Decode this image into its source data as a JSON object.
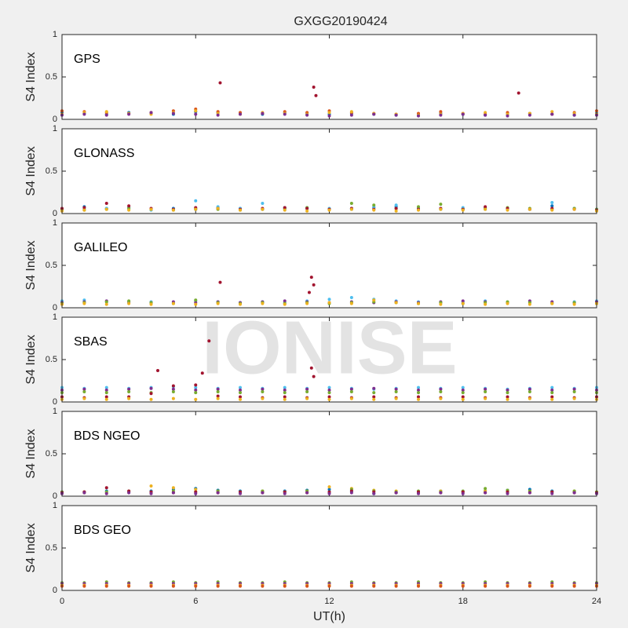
{
  "title": "GXGG20190424",
  "watermark": "IONISE",
  "chart_data": [
    {
      "type": "scatter",
      "label": "GPS",
      "ylabel": "S4 Index",
      "xlim": [
        0,
        24
      ],
      "ylim": [
        0,
        1
      ],
      "yticks": [
        0,
        0.5,
        1
      ],
      "x": [
        0,
        1,
        2,
        3,
        4,
        5,
        6,
        7,
        8,
        9,
        10,
        11,
        12,
        13,
        14,
        15,
        16,
        17,
        18,
        19,
        20,
        21,
        22,
        23,
        24
      ],
      "series": [
        {
          "color": "#0072BD",
          "values": [
            0.08,
            0.07,
            0.06,
            0.08,
            0.07,
            0.06,
            0.09,
            0.08,
            0.07,
            0.06,
            0.08,
            0.07,
            0.06,
            0.07,
            0.06,
            0.05,
            0.06,
            0.07,
            0.06,
            0.05,
            0.06,
            0.07,
            0.06,
            0.05,
            0.07
          ]
        },
        {
          "color": "#D95319",
          "values": [
            0.1,
            0.09,
            0.08,
            0.07,
            0.08,
            0.1,
            0.12,
            0.09,
            0.08,
            0.07,
            0.09,
            0.08,
            0.1,
            0.08,
            0.07,
            0.06,
            0.07,
            0.09,
            0.07,
            0.06,
            0.08,
            0.07,
            0.06,
            0.08,
            0.1
          ]
        },
        {
          "color": "#EDB120",
          "values": [
            0.06,
            0.08,
            0.09,
            0.07,
            0.06,
            0.08,
            0.1,
            0.07,
            0.06,
            0.08,
            0.07,
            0.06,
            0.08,
            0.09,
            0.07,
            0.06,
            0.05,
            0.06,
            0.07,
            0.08,
            0.06,
            0.07,
            0.09,
            0.07,
            0.06
          ]
        },
        {
          "color": "#7E2F8E",
          "values": [
            0.05,
            0.06,
            0.05,
            0.06,
            0.08,
            0.07,
            0.06,
            0.05,
            0.06,
            0.07,
            0.06,
            0.05,
            0.04,
            0.05,
            0.06,
            0.05,
            0.04,
            0.05,
            0.06,
            0.05,
            0.04,
            0.05,
            0.06,
            0.05,
            0.05
          ]
        },
        {
          "color": "#A2142F",
          "x": [
            7.1,
            11.3,
            11.4,
            20.5
          ],
          "values": [
            0.43,
            0.38,
            0.28,
            0.31
          ]
        }
      ]
    },
    {
      "type": "scatter",
      "label": "GLONASS",
      "ylabel": "S4 Index",
      "xlim": [
        0,
        24
      ],
      "ylim": [
        0,
        1
      ],
      "yticks": [
        0,
        0.5,
        1
      ],
      "x": [
        0,
        1,
        2,
        3,
        4,
        5,
        6,
        7,
        8,
        9,
        10,
        11,
        12,
        13,
        14,
        15,
        16,
        17,
        18,
        19,
        20,
        21,
        22,
        23,
        24
      ],
      "series": [
        {
          "color": "#0072BD",
          "values": [
            0.05,
            0.08,
            0.06,
            0.07,
            0.05,
            0.06,
            0.05,
            0.07,
            0.06,
            0.05,
            0.07,
            0.06,
            0.05,
            0.06,
            0.07,
            0.08,
            0.06,
            0.05,
            0.06,
            0.07,
            0.06,
            0.05,
            0.09,
            0.06,
            0.05
          ]
        },
        {
          "color": "#4DBEEE",
          "values": [
            0.04,
            0.05,
            0.06,
            0.05,
            0.04,
            0.05,
            0.15,
            0.08,
            0.06,
            0.12,
            0.05,
            0.07,
            0.06,
            0.05,
            0.08,
            0.1,
            0.05,
            0.06,
            0.07,
            0.05,
            0.06,
            0.05,
            0.13,
            0.06,
            0.05
          ]
        },
        {
          "color": "#77AC30",
          "values": [
            0.05,
            0.04,
            0.05,
            0.06,
            0.05,
            0.04,
            0.06,
            0.05,
            0.04,
            0.05,
            0.06,
            0.07,
            0.05,
            0.12,
            0.1,
            0.06,
            0.08,
            0.11,
            0.05,
            0.06,
            0.07,
            0.06,
            0.05,
            0.06,
            0.05
          ]
        },
        {
          "color": "#A2142F",
          "values": [
            0.06,
            0.07,
            0.12,
            0.09,
            0.06,
            0.05,
            0.07,
            0.06,
            0.05,
            0.06,
            0.07,
            0.06,
            0.05,
            0.06,
            0.05,
            0.06,
            0.05,
            0.06,
            0.05,
            0.08,
            0.06,
            0.05,
            0.06,
            0.05,
            0.04
          ]
        },
        {
          "color": "#EDB120",
          "values": [
            0.03,
            0.04,
            0.05,
            0.04,
            0.05,
            0.04,
            0.05,
            0.06,
            0.04,
            0.05,
            0.04,
            0.03,
            0.04,
            0.05,
            0.04,
            0.03,
            0.04,
            0.05,
            0.04,
            0.05,
            0.04,
            0.05,
            0.04,
            0.05,
            0.03
          ]
        }
      ]
    },
    {
      "type": "scatter",
      "label": "GALILEO",
      "ylabel": "S4 Index",
      "xlim": [
        0,
        24
      ],
      "ylim": [
        0,
        1
      ],
      "yticks": [
        0,
        0.5,
        1
      ],
      "x": [
        0,
        1,
        2,
        3,
        4,
        5,
        6,
        7,
        8,
        9,
        10,
        11,
        12,
        13,
        14,
        15,
        16,
        17,
        18,
        19,
        20,
        21,
        22,
        23,
        24
      ],
      "series": [
        {
          "color": "#4DBEEE",
          "values": [
            0.08,
            0.09,
            0.07,
            0.06,
            0.07,
            0.06,
            0.08,
            0.07,
            0.06,
            0.07,
            0.06,
            0.08,
            0.1,
            0.12,
            0.1,
            0.08,
            0.07,
            0.06,
            0.07,
            0.08,
            0.06,
            0.07,
            0.06,
            0.07,
            0.08
          ]
        },
        {
          "color": "#7E2F8E",
          "values": [
            0.06,
            0.07,
            0.08,
            0.07,
            0.06,
            0.07,
            0.06,
            0.07,
            0.06,
            0.07,
            0.08,
            0.07,
            0.06,
            0.07,
            0.06,
            0.07,
            0.06,
            0.07,
            0.08,
            0.07,
            0.06,
            0.08,
            0.07,
            0.06,
            0.07
          ]
        },
        {
          "color": "#77AC30",
          "values": [
            0.05,
            0.06,
            0.07,
            0.08,
            0.06,
            0.05,
            0.09,
            0.06,
            0.05,
            0.06,
            0.05,
            0.06,
            0.05,
            0.06,
            0.07,
            0.06,
            0.05,
            0.06,
            0.05,
            0.06,
            0.07,
            0.06,
            0.05,
            0.06,
            0.05
          ]
        },
        {
          "color": "#EDB120",
          "values": [
            0.04,
            0.05,
            0.04,
            0.05,
            0.04,
            0.05,
            0.04,
            0.05,
            0.04,
            0.05,
            0.04,
            0.05,
            0.06,
            0.05,
            0.09,
            0.06,
            0.05,
            0.04,
            0.05,
            0.04,
            0.05,
            0.04,
            0.05,
            0.04,
            0.05
          ]
        },
        {
          "color": "#A2142F",
          "x": [
            7.1,
            11.2,
            11.3,
            11.1
          ],
          "values": [
            0.3,
            0.36,
            0.27,
            0.18
          ]
        }
      ]
    },
    {
      "type": "scatter",
      "label": "SBAS",
      "ylabel": "S4 Index",
      "xlim": [
        0,
        24
      ],
      "ylim": [
        0,
        1
      ],
      "yticks": [
        0,
        0.5,
        1
      ],
      "x": [
        0,
        1,
        2,
        3,
        4,
        5,
        6,
        7,
        8,
        9,
        10,
        11,
        12,
        13,
        14,
        15,
        16,
        17,
        18,
        19,
        20,
        21,
        22,
        23,
        24
      ],
      "series": [
        {
          "color": "#4DBEEE",
          "values": [
            0.17,
            0.16,
            0.17,
            0.16,
            0.17,
            0.18,
            0.17,
            0.16,
            0.17,
            0.16,
            0.17,
            0.16,
            0.17,
            0.16,
            0.15,
            0.16,
            0.17,
            0.16,
            0.17,
            0.16,
            0.15,
            0.16,
            0.17,
            0.16,
            0.17
          ]
        },
        {
          "color": "#7E2F8E",
          "values": [
            0.14,
            0.15,
            0.14,
            0.15,
            0.16,
            0.15,
            0.14,
            0.15,
            0.14,
            0.15,
            0.14,
            0.15,
            0.14,
            0.15,
            0.16,
            0.15,
            0.14,
            0.15,
            0.14,
            0.15,
            0.14,
            0.15,
            0.14,
            0.15,
            0.14
          ]
        },
        {
          "color": "#77AC30",
          "values": [
            0.11,
            0.12,
            0.11,
            0.12,
            0.11,
            0.12,
            0.11,
            0.12,
            0.11,
            0.12,
            0.11,
            0.12,
            0.11,
            0.12,
            0.11,
            0.12,
            0.11,
            0.12,
            0.11,
            0.12,
            0.11,
            0.12,
            0.11,
            0.12,
            0.11
          ]
        },
        {
          "color": "#A2142F",
          "values": [
            0.06,
            0.05,
            0.06,
            0.06,
            0.1,
            0.19,
            0.2,
            0.07,
            0.06,
            0.05,
            0.06,
            0.05,
            0.06,
            0.05,
            0.06,
            0.05,
            0.06,
            0.05,
            0.06,
            0.05,
            0.06,
            0.05,
            0.06,
            0.05,
            0.06
          ]
        },
        {
          "color": "#EDB120",
          "values": [
            0.03,
            0.04,
            0.03,
            0.04,
            0.03,
            0.04,
            0.03,
            0.04,
            0.03,
            0.04,
            0.03,
            0.04,
            0.03,
            0.04,
            0.03,
            0.04,
            0.03,
            0.04,
            0.03,
            0.04,
            0.03,
            0.04,
            0.03,
            0.04,
            0.03
          ]
        },
        {
          "color": "#A2142F",
          "x": [
            6.6,
            11.2,
            4.3,
            6.3,
            11.3
          ],
          "values": [
            0.72,
            0.4,
            0.37,
            0.34,
            0.3
          ]
        }
      ]
    },
    {
      "type": "scatter",
      "label": "BDS NGEO",
      "ylabel": "S4 Index",
      "xlim": [
        0,
        24
      ],
      "ylim": [
        0,
        1
      ],
      "yticks": [
        0,
        0.5,
        1
      ],
      "x": [
        0,
        1,
        2,
        3,
        4,
        5,
        6,
        7,
        8,
        9,
        10,
        11,
        12,
        13,
        14,
        15,
        16,
        17,
        18,
        19,
        20,
        21,
        22,
        23,
        24
      ],
      "series": [
        {
          "color": "#0072BD",
          "values": [
            0.05,
            0.05,
            0.06,
            0.05,
            0.06,
            0.08,
            0.09,
            0.07,
            0.06,
            0.05,
            0.06,
            0.07,
            0.08,
            0.06,
            0.03,
            0.04,
            0.05,
            0.06,
            0.05,
            0.06,
            0.07,
            0.08,
            0.06,
            0.05,
            0.04
          ]
        },
        {
          "color": "#EDB120",
          "values": [
            0.04,
            0.05,
            0.04,
            0.05,
            0.12,
            0.1,
            0.08,
            0.06,
            0.05,
            0.06,
            0.05,
            0.06,
            0.11,
            0.09,
            0.07,
            0.06,
            0.05,
            0.06,
            0.05,
            0.06,
            0.05,
            0.06,
            0.05,
            0.06,
            0.05
          ]
        },
        {
          "color": "#77AC30",
          "values": [
            0.05,
            0.04,
            0.05,
            0.06,
            0.05,
            0.06,
            0.05,
            0.06,
            0.05,
            0.06,
            0.05,
            0.06,
            0.05,
            0.08,
            0.06,
            0.05,
            0.06,
            0.05,
            0.06,
            0.09,
            0.07,
            0.06,
            0.05,
            0.06,
            0.05
          ]
        },
        {
          "color": "#A2142F",
          "values": [
            0.04,
            0.05,
            0.1,
            0.06,
            0.05,
            0.04,
            0.05,
            0.04,
            0.05,
            0.04,
            0.05,
            0.04,
            0.05,
            0.06,
            0.05,
            0.04,
            0.05,
            0.04,
            0.05,
            0.04,
            0.05,
            0.04,
            0.05,
            0.04,
            0.04
          ]
        },
        {
          "color": "#7E2F8E",
          "values": [
            0.03,
            0.04,
            0.03,
            0.04,
            0.03,
            0.04,
            0.03,
            0.04,
            0.03,
            0.04,
            0.03,
            0.04,
            0.03,
            0.04,
            0.03,
            0.04,
            0.03,
            0.04,
            0.03,
            0.04,
            0.03,
            0.04,
            0.03,
            0.04,
            0.03
          ]
        }
      ]
    },
    {
      "type": "scatter",
      "label": "BDS GEO",
      "ylabel": "S4 Index",
      "xlabel": "UT(h)",
      "xlim": [
        0,
        24
      ],
      "ylim": [
        0,
        1
      ],
      "yticks": [
        0,
        0.5,
        1
      ],
      "xticks": [
        0,
        6,
        12,
        18,
        24
      ],
      "x": [
        0,
        1,
        2,
        3,
        4,
        5,
        6,
        7,
        8,
        9,
        10,
        11,
        12,
        13,
        14,
        15,
        16,
        17,
        18,
        19,
        20,
        21,
        22,
        23,
        24
      ],
      "series": [
        {
          "color": "#77AC30",
          "values": [
            0.09,
            0.09,
            0.1,
            0.09,
            0.09,
            0.1,
            0.09,
            0.1,
            0.09,
            0.09,
            0.1,
            0.09,
            0.09,
            0.1,
            0.09,
            0.09,
            0.1,
            0.09,
            0.09,
            0.1,
            0.09,
            0.09,
            0.1,
            0.09,
            0.09
          ]
        },
        {
          "color": "#7E2F8E",
          "values": [
            0.08,
            0.08,
            0.08,
            0.08,
            0.08,
            0.08,
            0.08,
            0.08,
            0.08,
            0.08,
            0.08,
            0.08,
            0.08,
            0.08,
            0.08,
            0.08,
            0.08,
            0.08,
            0.08,
            0.08,
            0.08,
            0.08,
            0.08,
            0.08,
            0.08
          ]
        },
        {
          "color": "#EDB120",
          "values": [
            0.06,
            0.06,
            0.06,
            0.06,
            0.06,
            0.06,
            0.06,
            0.06,
            0.06,
            0.06,
            0.06,
            0.06,
            0.06,
            0.06,
            0.06,
            0.06,
            0.06,
            0.06,
            0.06,
            0.06,
            0.06,
            0.06,
            0.06,
            0.06,
            0.06
          ]
        },
        {
          "color": "#D95319",
          "values": [
            0.05,
            0.05,
            0.05,
            0.05,
            0.05,
            0.05,
            0.05,
            0.05,
            0.05,
            0.05,
            0.05,
            0.05,
            0.05,
            0.05,
            0.05,
            0.05,
            0.05,
            0.05,
            0.05,
            0.05,
            0.05,
            0.05,
            0.05,
            0.05,
            0.05
          ]
        }
      ]
    }
  ]
}
